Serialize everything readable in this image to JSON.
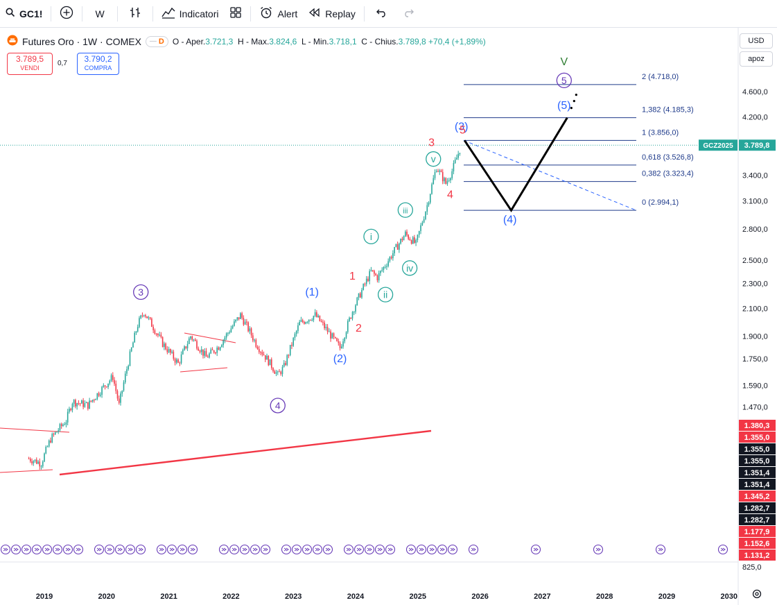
{
  "toolbar": {
    "symbol": "GC1!",
    "interval": "W",
    "indicators_label": "Indicatori",
    "alert_label": "Alert",
    "replay_label": "Replay"
  },
  "legend": {
    "title": "Futures Oro · 1W · COMEX",
    "badge": "D",
    "open_label": "O - Aper.",
    "open": "3.721,3",
    "high_label": "H - Max.",
    "high": "3.824,6",
    "low_label": "L - Min.",
    "low": "3.718,1",
    "close_label": "C - Chius.",
    "close": "3.789,8",
    "change": "+70,4 (+1,89%)"
  },
  "trade": {
    "sell_price": "3.789,5",
    "sell_label": "VENDI",
    "spread": "0,7",
    "buy_price": "3.790,2",
    "buy_label": "COMPRA"
  },
  "scale": {
    "currency": "USD",
    "mode": "apoz",
    "ticker_tag": "GCZ2025",
    "last_price": "3.789,8"
  },
  "colors": {
    "up": "#26a69a",
    "down": "#f23645",
    "waves_purple": "#673ab7",
    "waves_blue": "#2962ff",
    "waves_red": "#f23645",
    "waves_green": "#26a69a",
    "fib": "#1e3a8a"
  },
  "chart_data": {
    "type": "line",
    "title": "Futures Oro · 1W · COMEX",
    "y_scale": "log",
    "x_ticks": [
      "2019",
      "2020",
      "2021",
      "2022",
      "2023",
      "2024",
      "2025",
      "2026",
      "2027",
      "2028",
      "2029",
      "2030"
    ],
    "y_ticks": [
      "4.600,0",
      "4.200,0",
      "3.400,0",
      "3.100,0",
      "2.800,0",
      "2.500,0",
      "2.300,0",
      "2.100,0",
      "1.900,0",
      "1.750,0",
      "1.590,0",
      "1.470,0",
      "825,0"
    ],
    "y_ticks_values": [
      4600,
      4200,
      3400,
      3100,
      2800,
      2500,
      2300,
      2100,
      1900,
      1750,
      1590,
      1470,
      825
    ],
    "price_series": {
      "x": [
        2018.75,
        2018.95,
        2019.1,
        2019.35,
        2019.45,
        2019.7,
        2019.9,
        2020.1,
        2020.2,
        2020.5,
        2020.6,
        2020.9,
        2021.15,
        2021.35,
        2021.6,
        2021.8,
        2022.15,
        2022.4,
        2022.75,
        2022.85,
        2023.1,
        2023.35,
        2023.75,
        2023.95,
        2024.25,
        2024.35,
        2024.55,
        2024.8,
        2024.97,
        2025.15,
        2025.3,
        2025.45,
        2025.55,
        2025.7
      ],
      "y": [
        1220,
        1200,
        1310,
        1400,
        1500,
        1480,
        1560,
        1640,
        1480,
        1980,
        2075,
        1850,
        1720,
        1900,
        1760,
        1830,
        2050,
        1850,
        1650,
        1700,
        1990,
        2050,
        1820,
        2080,
        2400,
        2350,
        2520,
        2750,
        2650,
        3050,
        3500,
        3300,
        3450,
        3789.8
      ]
    },
    "fib_levels": [
      {
        "label": "2 (4.718,0)",
        "value": 4718.0
      },
      {
        "label": "1,382 (4.185,3)",
        "value": 4185.3
      },
      {
        "label": "1 (3.856,0)",
        "value": 3856.0
      },
      {
        "label": "0,618 (3.526,8)",
        "value": 3526.8
      },
      {
        "label": "0,382 (3.323,4)",
        "value": 3323.4
      },
      {
        "label": "0 (2.994,1)",
        "value": 2994.1
      }
    ],
    "projection": {
      "x": [
        2025.75,
        2026.5,
        2027.4
      ],
      "y": [
        3856,
        2994.1,
        4185.3
      ]
    },
    "right_axis_tags": [
      {
        "text": "1.380,3",
        "color": "#f23645"
      },
      {
        "text": "1.355,0",
        "color": "#f23645"
      },
      {
        "text": "1.355,0",
        "color": "#131722"
      },
      {
        "text": "1.355,0",
        "color": "#131722"
      },
      {
        "text": "1.351,4",
        "color": "#131722"
      },
      {
        "text": "1.351,4",
        "color": "#131722"
      },
      {
        "text": "1.345,2",
        "color": "#f23645"
      },
      {
        "text": "1.282,7",
        "color": "#131722"
      },
      {
        "text": "1.282,7",
        "color": "#131722"
      },
      {
        "text": "1.177,9",
        "color": "#f23645"
      },
      {
        "text": "1.152,6",
        "color": "#f23645"
      },
      {
        "text": "1.131,2",
        "color": "#f23645"
      }
    ],
    "wave_labels": [
      {
        "text": "3",
        "style": "circle",
        "color": "#673ab7",
        "x": 2020.55,
        "y": 2200
      },
      {
        "text": "4",
        "style": "circle",
        "color": "#673ab7",
        "x": 2022.75,
        "y": 1460
      },
      {
        "text": "(1)",
        "style": "plain",
        "color": "#2962ff",
        "x": 2023.3,
        "y": 2200
      },
      {
        "text": "(2)",
        "style": "plain",
        "color": "#2962ff",
        "x": 2023.75,
        "y": 1730
      },
      {
        "text": "(3)",
        "style": "plain",
        "color": "#2962ff",
        "x": 2025.7,
        "y": 4000
      },
      {
        "text": "(4)",
        "style": "plain",
        "color": "#2962ff",
        "x": 2026.48,
        "y": 2860
      },
      {
        "text": "(5)",
        "style": "plain",
        "color": "#2962ff",
        "x": 2027.35,
        "y": 4320
      },
      {
        "text": "5",
        "style": "circle",
        "color": "#673ab7",
        "x": 2027.35,
        "y": 4730
      },
      {
        "text": "V",
        "style": "plain",
        "color": "#2e7d32",
        "x": 2027.35,
        "y": 5060
      },
      {
        "text": "1",
        "style": "plain",
        "color": "#f23645",
        "x": 2023.95,
        "y": 2330
      },
      {
        "text": "2",
        "style": "plain",
        "color": "#f23645",
        "x": 2024.05,
        "y": 1930
      },
      {
        "text": "3",
        "style": "plain",
        "color": "#f23645",
        "x": 2025.22,
        "y": 3780
      },
      {
        "text": "4",
        "style": "plain",
        "color": "#f23645",
        "x": 2025.52,
        "y": 3130
      },
      {
        "text": "5",
        "style": "plain",
        "color": "#f23645",
        "x": 2025.72,
        "y": 3950
      },
      {
        "text": "i",
        "style": "circle",
        "color": "#26a69a",
        "x": 2024.25,
        "y": 2690
      },
      {
        "text": "ii",
        "style": "circle",
        "color": "#26a69a",
        "x": 2024.48,
        "y": 2180
      },
      {
        "text": "iii",
        "style": "circle",
        "color": "#26a69a",
        "x": 2024.8,
        "y": 2960
      },
      {
        "text": "iv",
        "style": "circle",
        "color": "#26a69a",
        "x": 2024.87,
        "y": 2400
      },
      {
        "text": "v",
        "style": "circle",
        "color": "#26a69a",
        "x": 2025.25,
        "y": 3560
      }
    ]
  }
}
